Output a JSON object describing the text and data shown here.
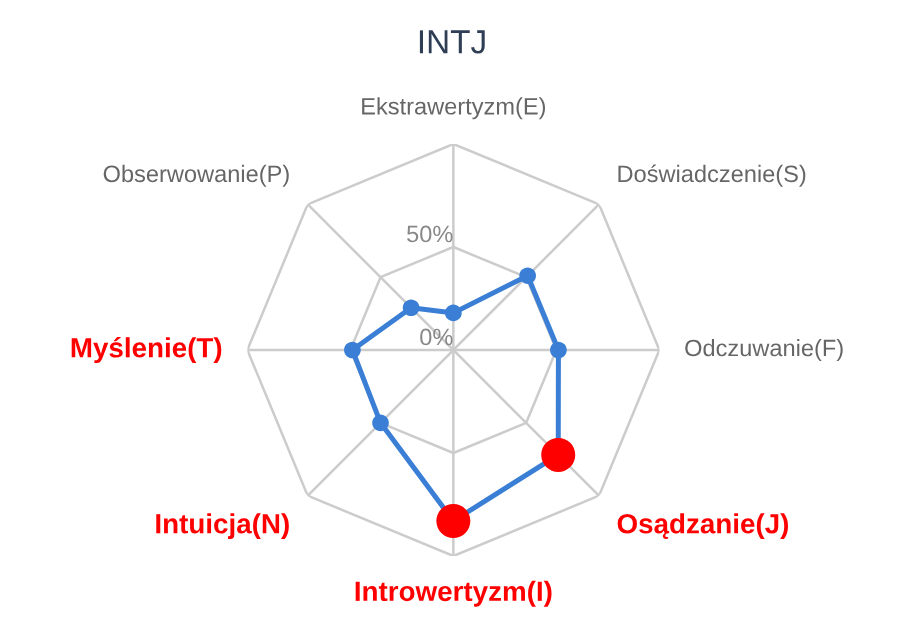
{
  "chart_data": {
    "type": "radar",
    "title": "INTJ",
    "categories": [
      "Ekstrawertyzm(E)",
      "Doświadczenie(S)",
      "Odczuwanie(F)",
      "Osądzanie(J)",
      "Introwertyzm(I)",
      "Intuicja(N)",
      "Myślenie(T)",
      "Obserwowanie(P)"
    ],
    "colors": [
      "#666666",
      "#666666",
      "#666666",
      "#ff0000",
      "#ff0000",
      "#ff0000",
      "#ff0000",
      "#666666"
    ],
    "series": [
      {
        "color": "#3a7fd5",
        "values": [
          18,
          51,
          51,
          72,
          83,
          50,
          49,
          29
        ],
        "colors": [
          "#3a7fd5",
          "#3a7fd5",
          "#3a7fd5",
          "#ff0000",
          "#ff0000",
          "#3a7fd5",
          "#3a7fd5",
          "#3a7fd5"
        ]
      }
    ],
    "ylim": [
      0,
      100
    ],
    "yticks": [
      {
        "value": 0,
        "label": "0%"
      },
      {
        "value": 50,
        "label": "50%"
      }
    ],
    "grid": true,
    "marker": "circle",
    "line_style": "solid"
  }
}
